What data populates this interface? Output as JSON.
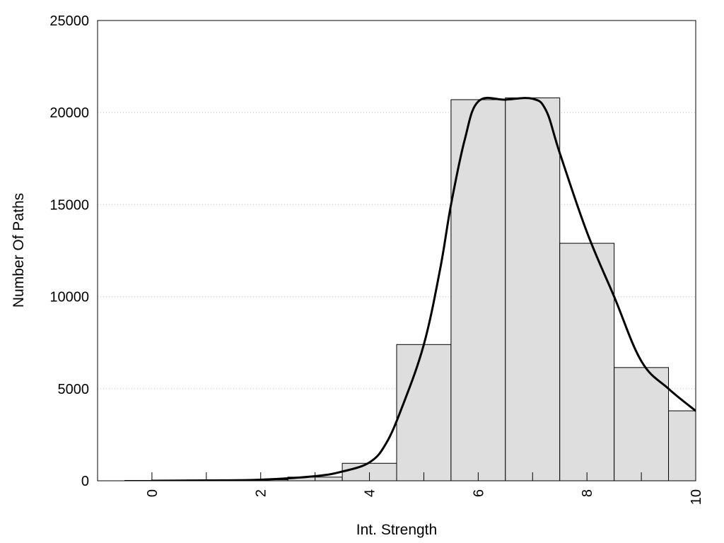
{
  "chart_data": {
    "type": "bar",
    "title": "",
    "xlabel": "Int. Strength",
    "ylabel": "Number Of Paths",
    "xlim": [
      -1,
      10
    ],
    "ylim": [
      0,
      25000
    ],
    "x_ticks": [
      0,
      2,
      4,
      6,
      8,
      10
    ],
    "x_tick_labels": [
      "0",
      "2",
      "4",
      "6",
      "8",
      "10"
    ],
    "x_minor_ticks": [
      0,
      1,
      2,
      3,
      4,
      5,
      6,
      7,
      8,
      9,
      10
    ],
    "y_ticks": [
      0,
      5000,
      10000,
      15000,
      20000,
      25000
    ],
    "y_tick_labels": [
      "0",
      "5000",
      "10000",
      "15000",
      "20000",
      "25000"
    ],
    "grid": "horizontal dotted",
    "legend": "none",
    "bar_width": 1,
    "bars": [
      {
        "x": 0,
        "value": 20
      },
      {
        "x": 1,
        "value": 30
      },
      {
        "x": 2,
        "value": 60
      },
      {
        "x": 3,
        "value": 200
      },
      {
        "x": 4,
        "value": 950
      },
      {
        "x": 5,
        "value": 7400
      },
      {
        "x": 6,
        "value": 20700
      },
      {
        "x": 7,
        "value": 20800
      },
      {
        "x": 8,
        "value": 12900
      },
      {
        "x": 9,
        "value": 6150
      },
      {
        "x": 10,
        "value": 3800
      }
    ],
    "curve": [
      {
        "x": 0,
        "y": 0
      },
      {
        "x": 1,
        "y": 20
      },
      {
        "x": 2,
        "y": 60
      },
      {
        "x": 3,
        "y": 250
      },
      {
        "x": 3.5,
        "y": 500
      },
      {
        "x": 4,
        "y": 1000
      },
      {
        "x": 4.3,
        "y": 2000
      },
      {
        "x": 4.6,
        "y": 4000
      },
      {
        "x": 5,
        "y": 7400
      },
      {
        "x": 5.3,
        "y": 11500
      },
      {
        "x": 5.5,
        "y": 15000
      },
      {
        "x": 5.75,
        "y": 18500
      },
      {
        "x": 6,
        "y": 20600
      },
      {
        "x": 6.5,
        "y": 20700
      },
      {
        "x": 7,
        "y": 20750
      },
      {
        "x": 7.25,
        "y": 20100
      },
      {
        "x": 7.5,
        "y": 17800
      },
      {
        "x": 8,
        "y": 13500
      },
      {
        "x": 8.5,
        "y": 10000
      },
      {
        "x": 9,
        "y": 6500
      },
      {
        "x": 9.5,
        "y": 5000
      },
      {
        "x": 10,
        "y": 3800
      }
    ],
    "colors": {
      "bar_fill": "#dedede",
      "bar_stroke": "#000000",
      "curve": "#000000",
      "grid": "#c8c8c8",
      "frame": "#000000"
    }
  }
}
